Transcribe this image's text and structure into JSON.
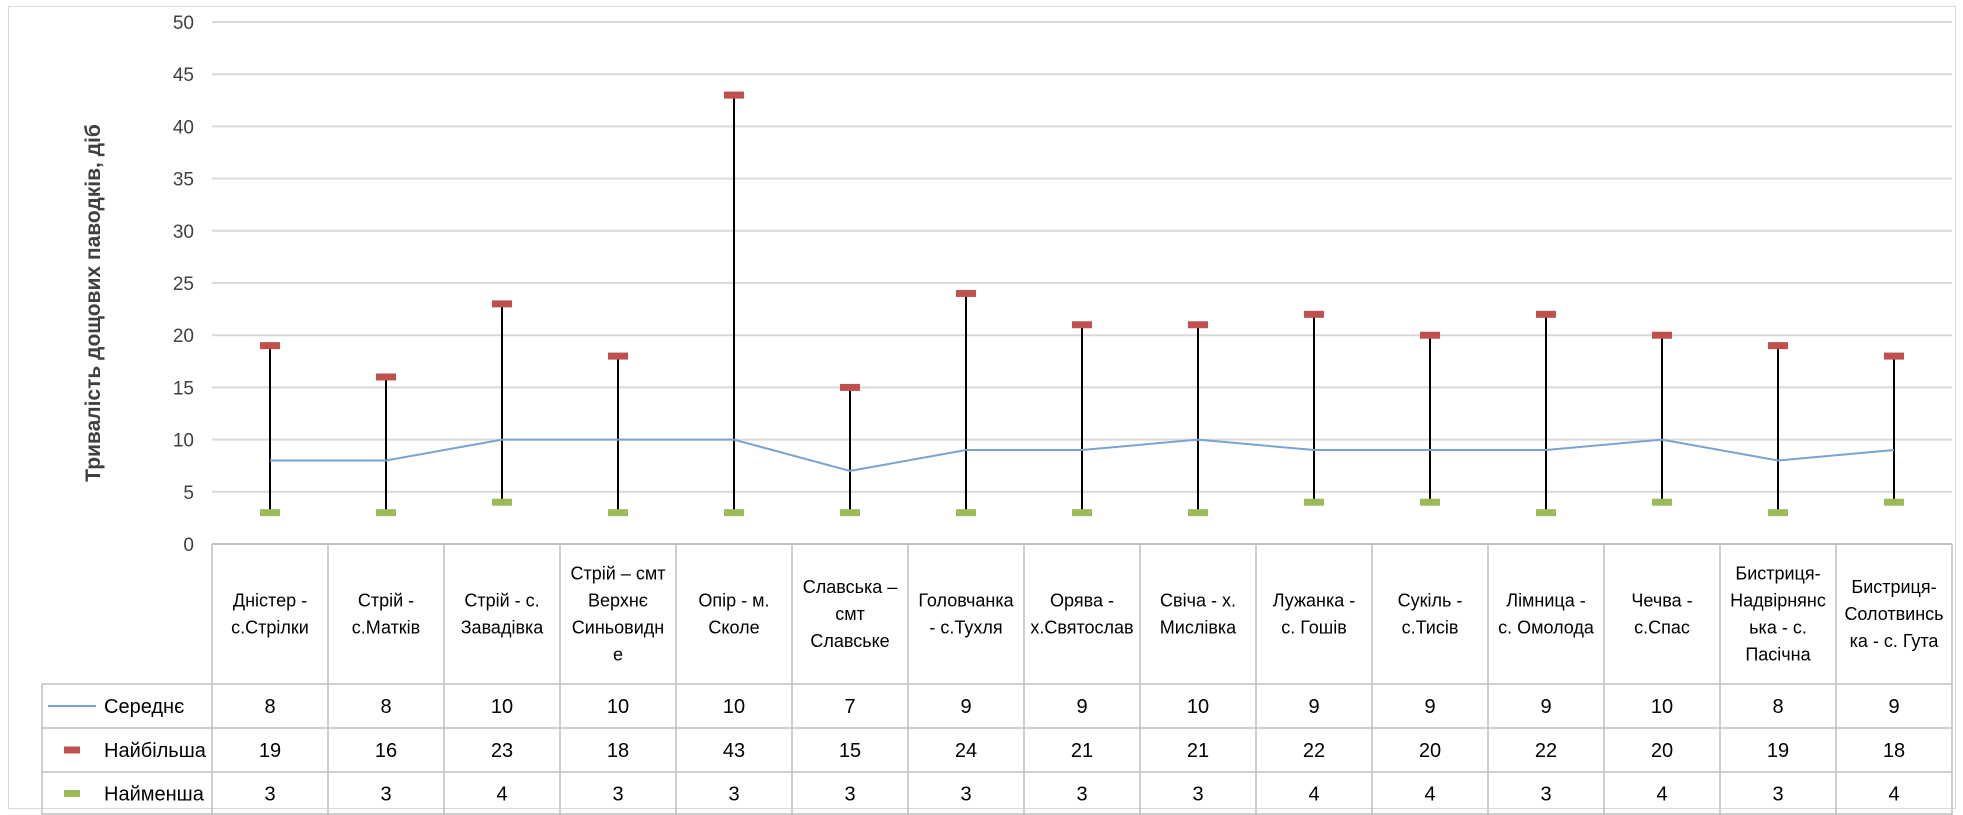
{
  "chart_data": {
    "type": "line",
    "title": "",
    "xlabel": "",
    "ylabel": "Тривалість дощових паводків, діб",
    "ylim": [
      0,
      50
    ],
    "yticks": [
      0,
      5,
      10,
      15,
      20,
      25,
      30,
      35,
      40,
      45,
      50
    ],
    "grid": true,
    "legend_position": "table-left",
    "categories": [
      [
        "Дністер -",
        "с.Стрілки"
      ],
      [
        "Стрій -",
        "с.Матків"
      ],
      [
        "Стрій - с.",
        "Завадівка"
      ],
      [
        "Стрій – смт",
        "Верхнє",
        "Синьовидн",
        "е"
      ],
      [
        "Опір - м.",
        "Сколе"
      ],
      [
        "Славська –",
        "смт",
        "Славське"
      ],
      [
        "Головчанка",
        "- с.Тухля"
      ],
      [
        "Орява -",
        "х.Святослав"
      ],
      [
        "Свіча - х.",
        "Мислівка"
      ],
      [
        "Лужанка -",
        "с. Гошів"
      ],
      [
        "Сукіль -",
        "с.Тисів"
      ],
      [
        "Лімница -",
        "с. Омолода"
      ],
      [
        "Чечва -",
        "с.Спас"
      ],
      [
        "Бистриця-",
        "Надвірнянс",
        "ька - с.",
        "Пасічна"
      ],
      [
        "Бистриця-",
        "Солотвинсь",
        "ка - с. Гута"
      ]
    ],
    "series": [
      {
        "name": "Середнє",
        "color": "#7ba3d0",
        "marker": "line",
        "values": [
          8,
          8,
          10,
          10,
          10,
          7,
          9,
          9,
          10,
          9,
          9,
          9,
          10,
          8,
          9
        ]
      },
      {
        "name": "Найбільша",
        "color": "#c0504d",
        "marker": "dash",
        "values": [
          19,
          16,
          23,
          18,
          43,
          15,
          24,
          21,
          21,
          22,
          20,
          22,
          20,
          19,
          18
        ]
      },
      {
        "name": "Найменша",
        "color": "#9bbb59",
        "marker": "dash",
        "values": [
          3,
          3,
          4,
          3,
          3,
          3,
          3,
          3,
          3,
          4,
          4,
          3,
          4,
          3,
          4
        ]
      }
    ],
    "hi_lo_lines": true,
    "hi_lo_color": "#000000",
    "gridline_color": "#d9d9d9"
  }
}
